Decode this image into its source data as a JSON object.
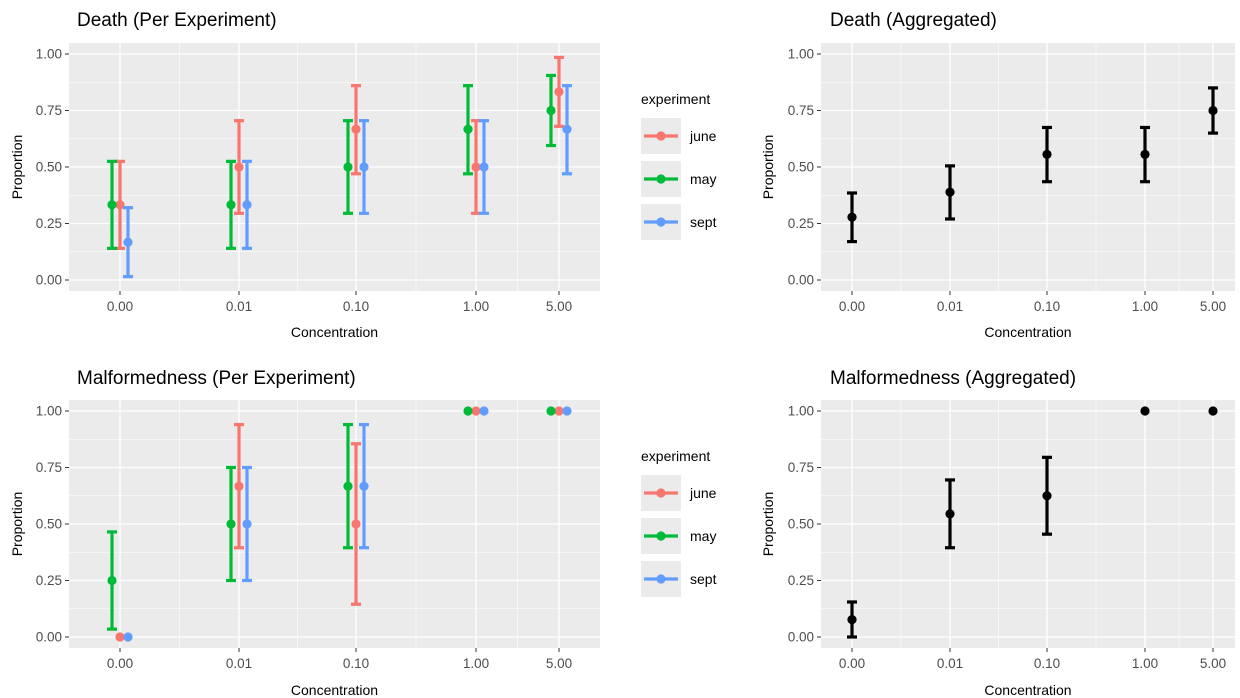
{
  "chart_data": [
    {
      "type": "scatter",
      "title": "Death (Per Experiment)",
      "xlabel": "Concentration",
      "ylabel": "Proportion",
      "categories": [
        "0.00",
        "0.01",
        "0.10",
        "1.00",
        "5.00"
      ],
      "yticks": [
        "0.00",
        "0.25",
        "0.50",
        "0.75",
        "1.00"
      ],
      "ylim": [
        0,
        1
      ],
      "grid": true,
      "legend": {
        "title": "experiment",
        "position": "right"
      },
      "error_bars": true,
      "series": [
        {
          "name": "june",
          "color": "#F8766D",
          "values": [
            0.333,
            0.5,
            0.667,
            0.5,
            0.833
          ],
          "lower": [
            0.14,
            0.295,
            0.47,
            0.295,
            0.68
          ],
          "upper": [
            0.525,
            0.705,
            0.86,
            0.705,
            0.985
          ]
        },
        {
          "name": "may",
          "color": "#00BA38",
          "values": [
            0.333,
            0.333,
            0.5,
            0.667,
            0.75
          ],
          "lower": [
            0.14,
            0.14,
            0.295,
            0.47,
            0.595
          ],
          "upper": [
            0.525,
            0.525,
            0.705,
            0.86,
            0.905
          ]
        },
        {
          "name": "sept",
          "color": "#619CFF",
          "values": [
            0.167,
            0.333,
            0.5,
            0.5,
            0.667
          ],
          "lower": [
            0.015,
            0.14,
            0.295,
            0.295,
            0.47
          ],
          "upper": [
            0.32,
            0.525,
            0.705,
            0.705,
            0.86
          ]
        }
      ]
    },
    {
      "type": "scatter",
      "title": "Death (Aggregated)",
      "xlabel": "Concentration",
      "ylabel": "Proportion",
      "categories": [
        "0.00",
        "0.01",
        "0.10",
        "1.00",
        "5.00"
      ],
      "yticks": [
        "0.00",
        "0.25",
        "0.50",
        "0.75",
        "1.00"
      ],
      "ylim": [
        0,
        1
      ],
      "grid": true,
      "error_bars": true,
      "series": [
        {
          "color": "#000000",
          "values": [
            0.278,
            0.389,
            0.556,
            0.556,
            0.75
          ],
          "lower": [
            0.17,
            0.27,
            0.435,
            0.435,
            0.65
          ],
          "upper": [
            0.385,
            0.505,
            0.675,
            0.675,
            0.85
          ]
        }
      ]
    },
    {
      "type": "scatter",
      "title": "Malformedness (Per Experiment)",
      "xlabel": "Concentration",
      "ylabel": "Proportion",
      "categories": [
        "0.00",
        "0.01",
        "0.10",
        "1.00",
        "5.00"
      ],
      "yticks": [
        "0.00",
        "0.25",
        "0.50",
        "0.75",
        "1.00"
      ],
      "ylim": [
        0,
        1
      ],
      "grid": true,
      "legend": {
        "title": "experiment",
        "position": "right"
      },
      "error_bars": true,
      "series": [
        {
          "name": "june",
          "color": "#F8766D",
          "values": [
            0.0,
            0.667,
            0.5,
            1.0,
            1.0
          ],
          "lower": [
            null,
            0.395,
            0.145,
            null,
            null
          ],
          "upper": [
            null,
            0.94,
            0.855,
            null,
            null
          ]
        },
        {
          "name": "may",
          "color": "#00BA38",
          "values": [
            0.25,
            0.5,
            0.667,
            1.0,
            1.0
          ],
          "lower": [
            0.035,
            0.25,
            0.395,
            null,
            null
          ],
          "upper": [
            0.465,
            0.75,
            0.94,
            null,
            null
          ]
        },
        {
          "name": "sept",
          "color": "#619CFF",
          "values": [
            0.0,
            0.5,
            0.667,
            1.0,
            1.0
          ],
          "lower": [
            null,
            0.25,
            0.395,
            null,
            null
          ],
          "upper": [
            null,
            0.75,
            0.94,
            null,
            null
          ]
        }
      ]
    },
    {
      "type": "scatter",
      "title": "Malformedness (Aggregated)",
      "xlabel": "Concentration",
      "ylabel": "Proportion",
      "categories": [
        "0.00",
        "0.01",
        "0.10",
        "1.00",
        "5.00"
      ],
      "yticks": [
        "0.00",
        "0.25",
        "0.50",
        "0.75",
        "1.00"
      ],
      "ylim": [
        0,
        1
      ],
      "grid": true,
      "error_bars": true,
      "series": [
        {
          "color": "#000000",
          "values": [
            0.077,
            0.545,
            0.625,
            1.0,
            1.0
          ],
          "lower": [
            0.0,
            0.395,
            0.455,
            null,
            null
          ],
          "upper": [
            0.155,
            0.695,
            0.795,
            null,
            null
          ]
        }
      ]
    }
  ]
}
